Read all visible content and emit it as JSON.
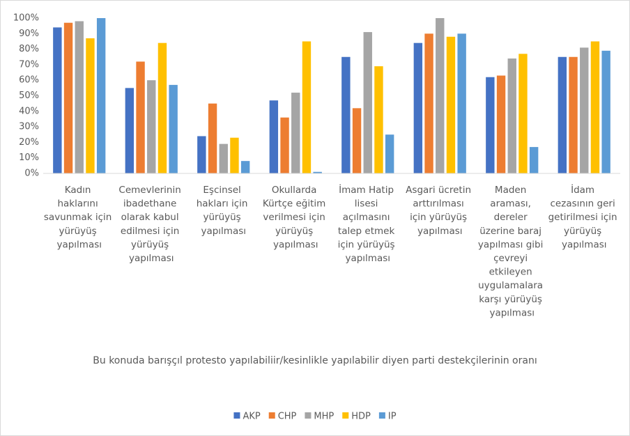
{
  "chart_data": {
    "type": "bar",
    "x_label": "Bu konuda barışçıl protesto yapılabiliir/kesinlikle yapılabilir diyen parti destekçilerinin oranı",
    "categories": [
      "Kadın haklarını savunmak için yürüyüş yapılması",
      "Cemevlerinin ibadethane olarak kabul edilmesi için yürüyüş yapılması",
      "Eşcinsel hakları için yürüyüş yapılması",
      "Okullarda Kürtçe eğitim verilmesi için yürüyüş yapılması",
      "İmam Hatip lisesi açılmasını talep etmek için yürüyüş yapılması",
      "Asgari ücretin arttırılması için yürüyüş yapılması",
      "Maden araması, dereler üzerine baraj yapılması gibi çevreyi etkileyen uygulamalara karşı yürüyüş yapılması",
      "İdam cezasının geri getirilmesi için yürüyüş yapılması"
    ],
    "series": [
      {
        "name": "AKP",
        "color": "#4472c4",
        "values": [
          94,
          55,
          24,
          47,
          75,
          84,
          62,
          75
        ]
      },
      {
        "name": "CHP",
        "color": "#ed7d31",
        "values": [
          97,
          72,
          45,
          36,
          42,
          90,
          63,
          75
        ]
      },
      {
        "name": "MHP",
        "color": "#a5a5a5",
        "values": [
          98,
          60,
          19,
          52,
          91,
          100,
          74,
          81
        ]
      },
      {
        "name": "HDP",
        "color": "#ffc000",
        "values": [
          87,
          84,
          23,
          85,
          69,
          88,
          77,
          85
        ]
      },
      {
        "name": "IP",
        "color": "#5b9bd5",
        "values": [
          100,
          57,
          8,
          1,
          25,
          90,
          17,
          79
        ]
      }
    ],
    "ylim": [
      0,
      100
    ],
    "yticks": [
      {
        "value": 0,
        "label": "0%"
      },
      {
        "value": 10,
        "label": "10%"
      },
      {
        "value": 20,
        "label": "20%"
      },
      {
        "value": 30,
        "label": "30%"
      },
      {
        "value": 40,
        "label": "40%"
      },
      {
        "value": 50,
        "label": "50%"
      },
      {
        "value": 60,
        "label": "60%"
      },
      {
        "value": 70,
        "label": "70%"
      },
      {
        "value": 80,
        "label": "80%"
      },
      {
        "value": 90,
        "label": "90%"
      },
      {
        "value": 100,
        "label": "100%"
      }
    ],
    "grid": false,
    "legend": "bottom"
  }
}
